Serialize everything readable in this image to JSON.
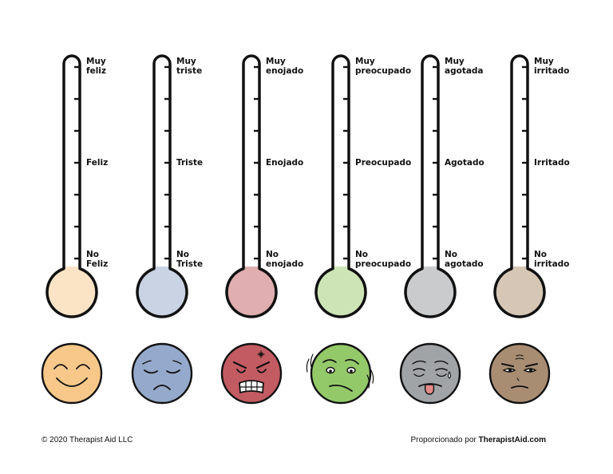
{
  "thermometers": [
    {
      "top": "Muy\nfeliz",
      "middle": "Feliz",
      "bottom": "No\nFeliz",
      "bulb_color": "#fbe3c5",
      "face": "happy",
      "face_color": "#f7c88a"
    },
    {
      "top": "Muy\ntriste",
      "middle": "Triste",
      "bottom": "No\nTriste",
      "bulb_color": "#c9d3e3",
      "face": "sad",
      "face_color": "#94a9cb"
    },
    {
      "top": "Muy\nenojado",
      "middle": "Enojado",
      "bottom": "No\nenojado",
      "bulb_color": "#e0aeb0",
      "face": "angry",
      "face_color": "#c35b62"
    },
    {
      "top": "Muy\npreocupado",
      "middle": "Preocupado",
      "bottom": "No\npreocupado",
      "bulb_color": "#cde5b6",
      "face": "worried",
      "face_color": "#94c96a"
    },
    {
      "top": "Muy\nagotada",
      "middle": "Agotado",
      "bottom": "No\nagotado",
      "bulb_color": "#c9cbcd",
      "face": "exhausted",
      "face_color": "#a1a4a7"
    },
    {
      "top": "Muy\nirritado",
      "middle": "Irritado",
      "bottom": "No\nirritado",
      "bulb_color": "#d6c6b6",
      "face": "irritated",
      "face_color": "#a98d73"
    }
  ],
  "footer": {
    "copyright": "© 2020 Therapist Aid LLC",
    "provided_by": "Proporcionado por",
    "brand": "TherapistAid.com"
  }
}
